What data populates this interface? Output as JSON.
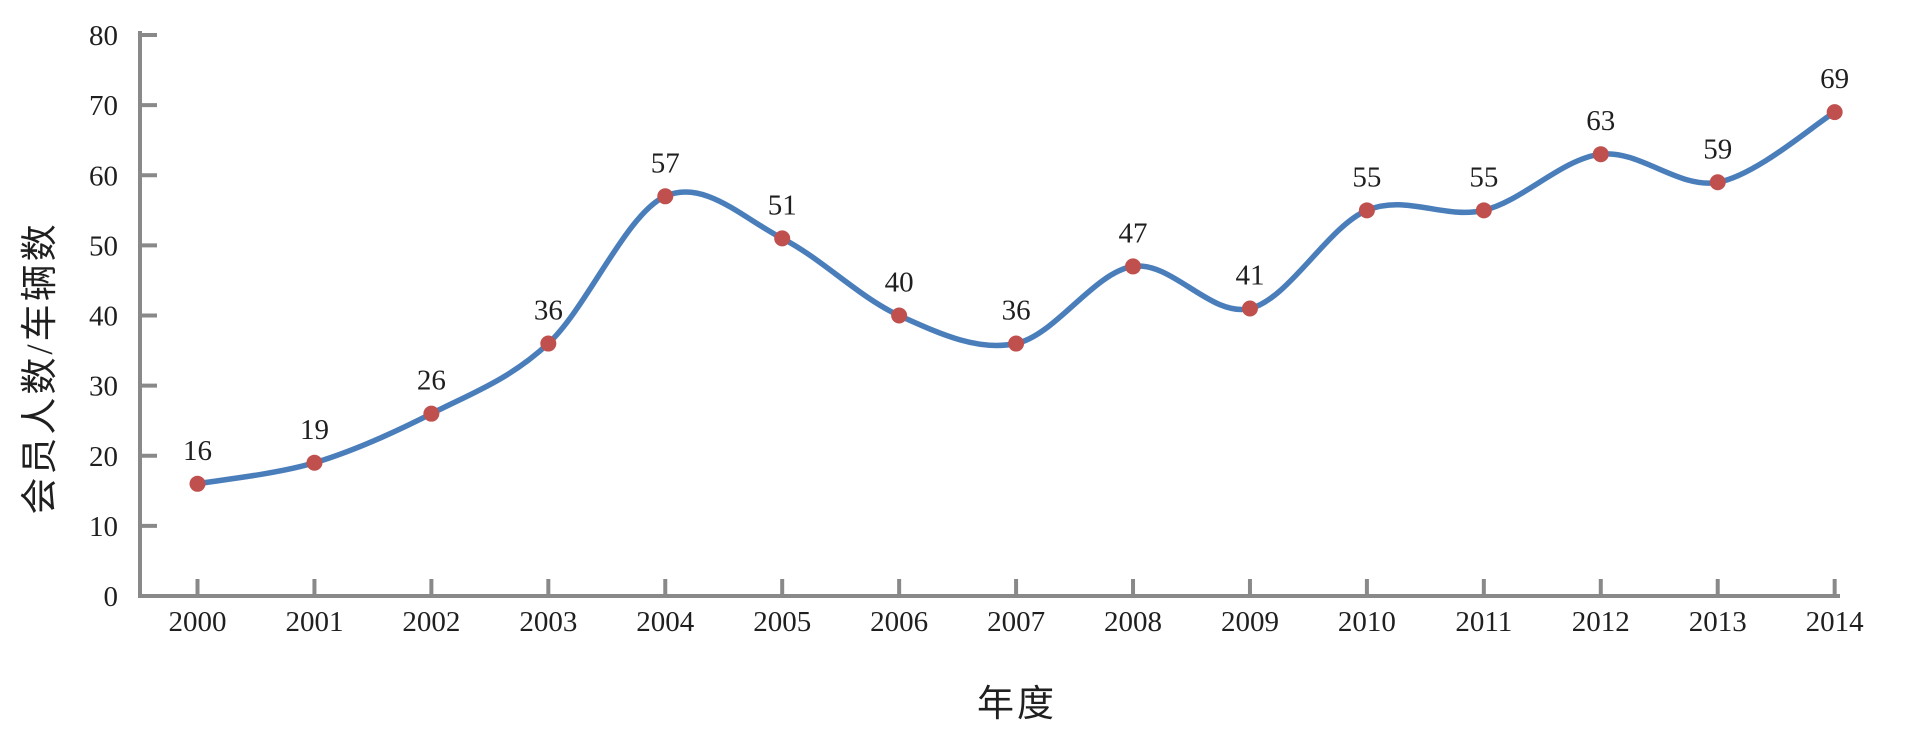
{
  "chart_data": {
    "type": "line",
    "smooth": true,
    "categories": [
      "2000",
      "2001",
      "2002",
      "2003",
      "2004",
      "2005",
      "2006",
      "2007",
      "2008",
      "2009",
      "2010",
      "2011",
      "2012",
      "2013",
      "2014"
    ],
    "values": [
      16,
      19,
      26,
      36,
      57,
      51,
      40,
      36,
      47,
      41,
      55,
      55,
      63,
      59,
      69
    ],
    "data_labels": [
      "16",
      "19",
      "26",
      "36",
      "57",
      "51",
      "40",
      "36",
      "47",
      "41",
      "55",
      "55",
      "63",
      "59",
      "69"
    ],
    "xlabel": "年度",
    "ylabel": "会员人数/车辆数",
    "ylim": [
      0,
      80
    ],
    "y_ticks": [
      0,
      10,
      20,
      30,
      40,
      50,
      60,
      70,
      80
    ],
    "y_tick_labels": [
      "0",
      "10",
      "20",
      "30",
      "40",
      "50",
      "60",
      "70",
      "80"
    ],
    "grid": false,
    "legend": "none",
    "colors": {
      "line": "#4a7ebb",
      "marker": "#c0504d",
      "axis": "#898989",
      "text": "#1f1f1f"
    }
  }
}
